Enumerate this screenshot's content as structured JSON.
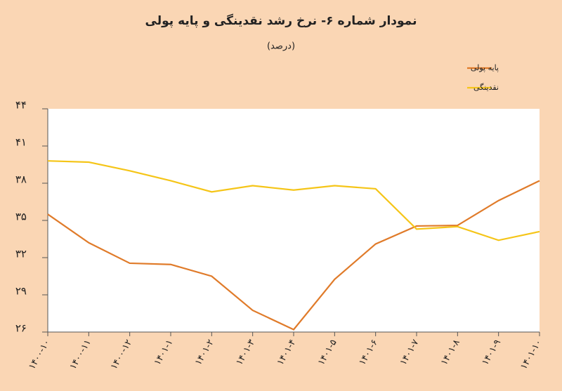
{
  "chart_data": {
    "type": "line",
    "title": "نمودار شماره ۶- نرخ رشد نقدینگی و پایه پولی",
    "subtitle": "(درصد)",
    "categories": [
      "۱۴۰۰-۱۰",
      "۱۴۰۰-۱۱",
      "۱۴۰۰-۱۲",
      "۱۴۰۱-۱",
      "۱۴۰۱-۲",
      "۱۴۰۱-۳",
      "۱۴۰۱-۴",
      "۱۴۰۱-۵",
      "۱۴۰۱-۶",
      "۱۴۰۱-۷",
      "۱۴۰۱-۸",
      "۱۴۰۱-۹",
      "۱۴۰۱-۱۰"
    ],
    "series": [
      {
        "name": "پایه پولی",
        "color": "#e07b2a",
        "values": [
          35.5,
          33.2,
          31.55,
          31.45,
          30.5,
          27.75,
          26.2,
          30.25,
          33.1,
          34.55,
          34.6,
          36.6,
          38.2
        ]
      },
      {
        "name": "نقدینگی",
        "color": "#f5c518",
        "values": [
          39.8,
          39.7,
          39.0,
          38.2,
          37.3,
          37.8,
          37.45,
          37.8,
          37.55,
          34.3,
          34.5,
          33.4,
          34.1
        ]
      }
    ],
    "ylim": [
      26,
      44
    ],
    "yticks": [
      {
        "value": 26,
        "label": "۲۶"
      },
      {
        "value": 29,
        "label": "۲۹"
      },
      {
        "value": 32,
        "label": "۳۲"
      },
      {
        "value": 35,
        "label": "۳۵"
      },
      {
        "value": 38,
        "label": "۳۸"
      },
      {
        "value": 41,
        "label": "۴۱"
      },
      {
        "value": 44,
        "label": "۴۴"
      }
    ],
    "legend": "top-right"
  }
}
